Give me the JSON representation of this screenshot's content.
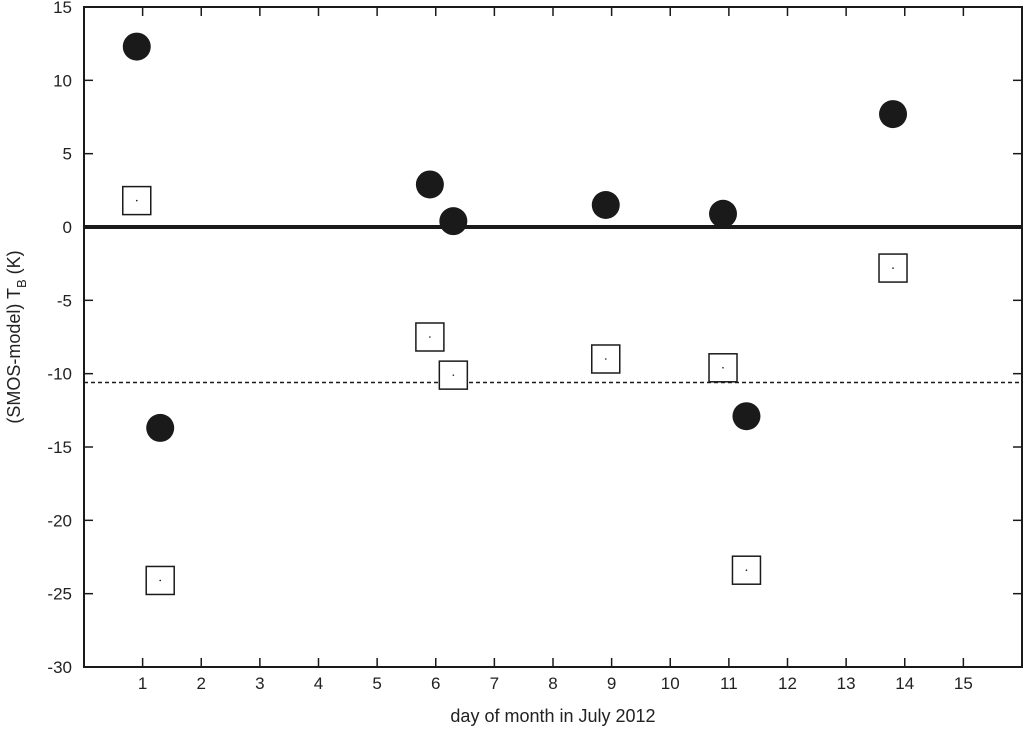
{
  "chart_data": {
    "type": "scatter",
    "title": "",
    "xlabel": "day of month in July 2012",
    "ylabel": {
      "main": "(SMOS-model) T",
      "subscript": "B",
      "unit": " (K)"
    },
    "xlim": [
      0,
      16
    ],
    "ylim": [
      -30,
      15
    ],
    "xticks": [
      1,
      2,
      3,
      4,
      5,
      6,
      7,
      8,
      9,
      10,
      11,
      12,
      13,
      14,
      15
    ],
    "yticks": [
      -30,
      -25,
      -20,
      -15,
      -10,
      -5,
      0,
      5,
      10,
      15
    ],
    "grid": false,
    "legend": "none",
    "series": [
      {
        "marker": "filled-circle",
        "color": "#1a1a1a",
        "points": [
          {
            "x": 0.9,
            "y": 12.3
          },
          {
            "x": 1.3,
            "y": -13.7
          },
          {
            "x": 5.9,
            "y": 2.9
          },
          {
            "x": 6.3,
            "y": 0.4
          },
          {
            "x": 8.9,
            "y": 1.5
          },
          {
            "x": 10.9,
            "y": 0.9
          },
          {
            "x": 11.3,
            "y": -12.9
          },
          {
            "x": 13.8,
            "y": 7.7
          }
        ]
      },
      {
        "marker": "open-square",
        "color": "#1a1a1a",
        "points": [
          {
            "x": 0.9,
            "y": 1.8
          },
          {
            "x": 1.3,
            "y": -24.1
          },
          {
            "x": 5.9,
            "y": -7.5
          },
          {
            "x": 6.3,
            "y": -10.1
          },
          {
            "x": 8.9,
            "y": -9.0
          },
          {
            "x": 10.9,
            "y": -9.6
          },
          {
            "x": 11.3,
            "y": -23.4
          },
          {
            "x": 13.8,
            "y": -2.8
          }
        ]
      }
    ],
    "reference_lines": [
      {
        "y": 0,
        "style": "solid-thick"
      },
      {
        "y": -10.6,
        "style": "dotted"
      }
    ]
  }
}
